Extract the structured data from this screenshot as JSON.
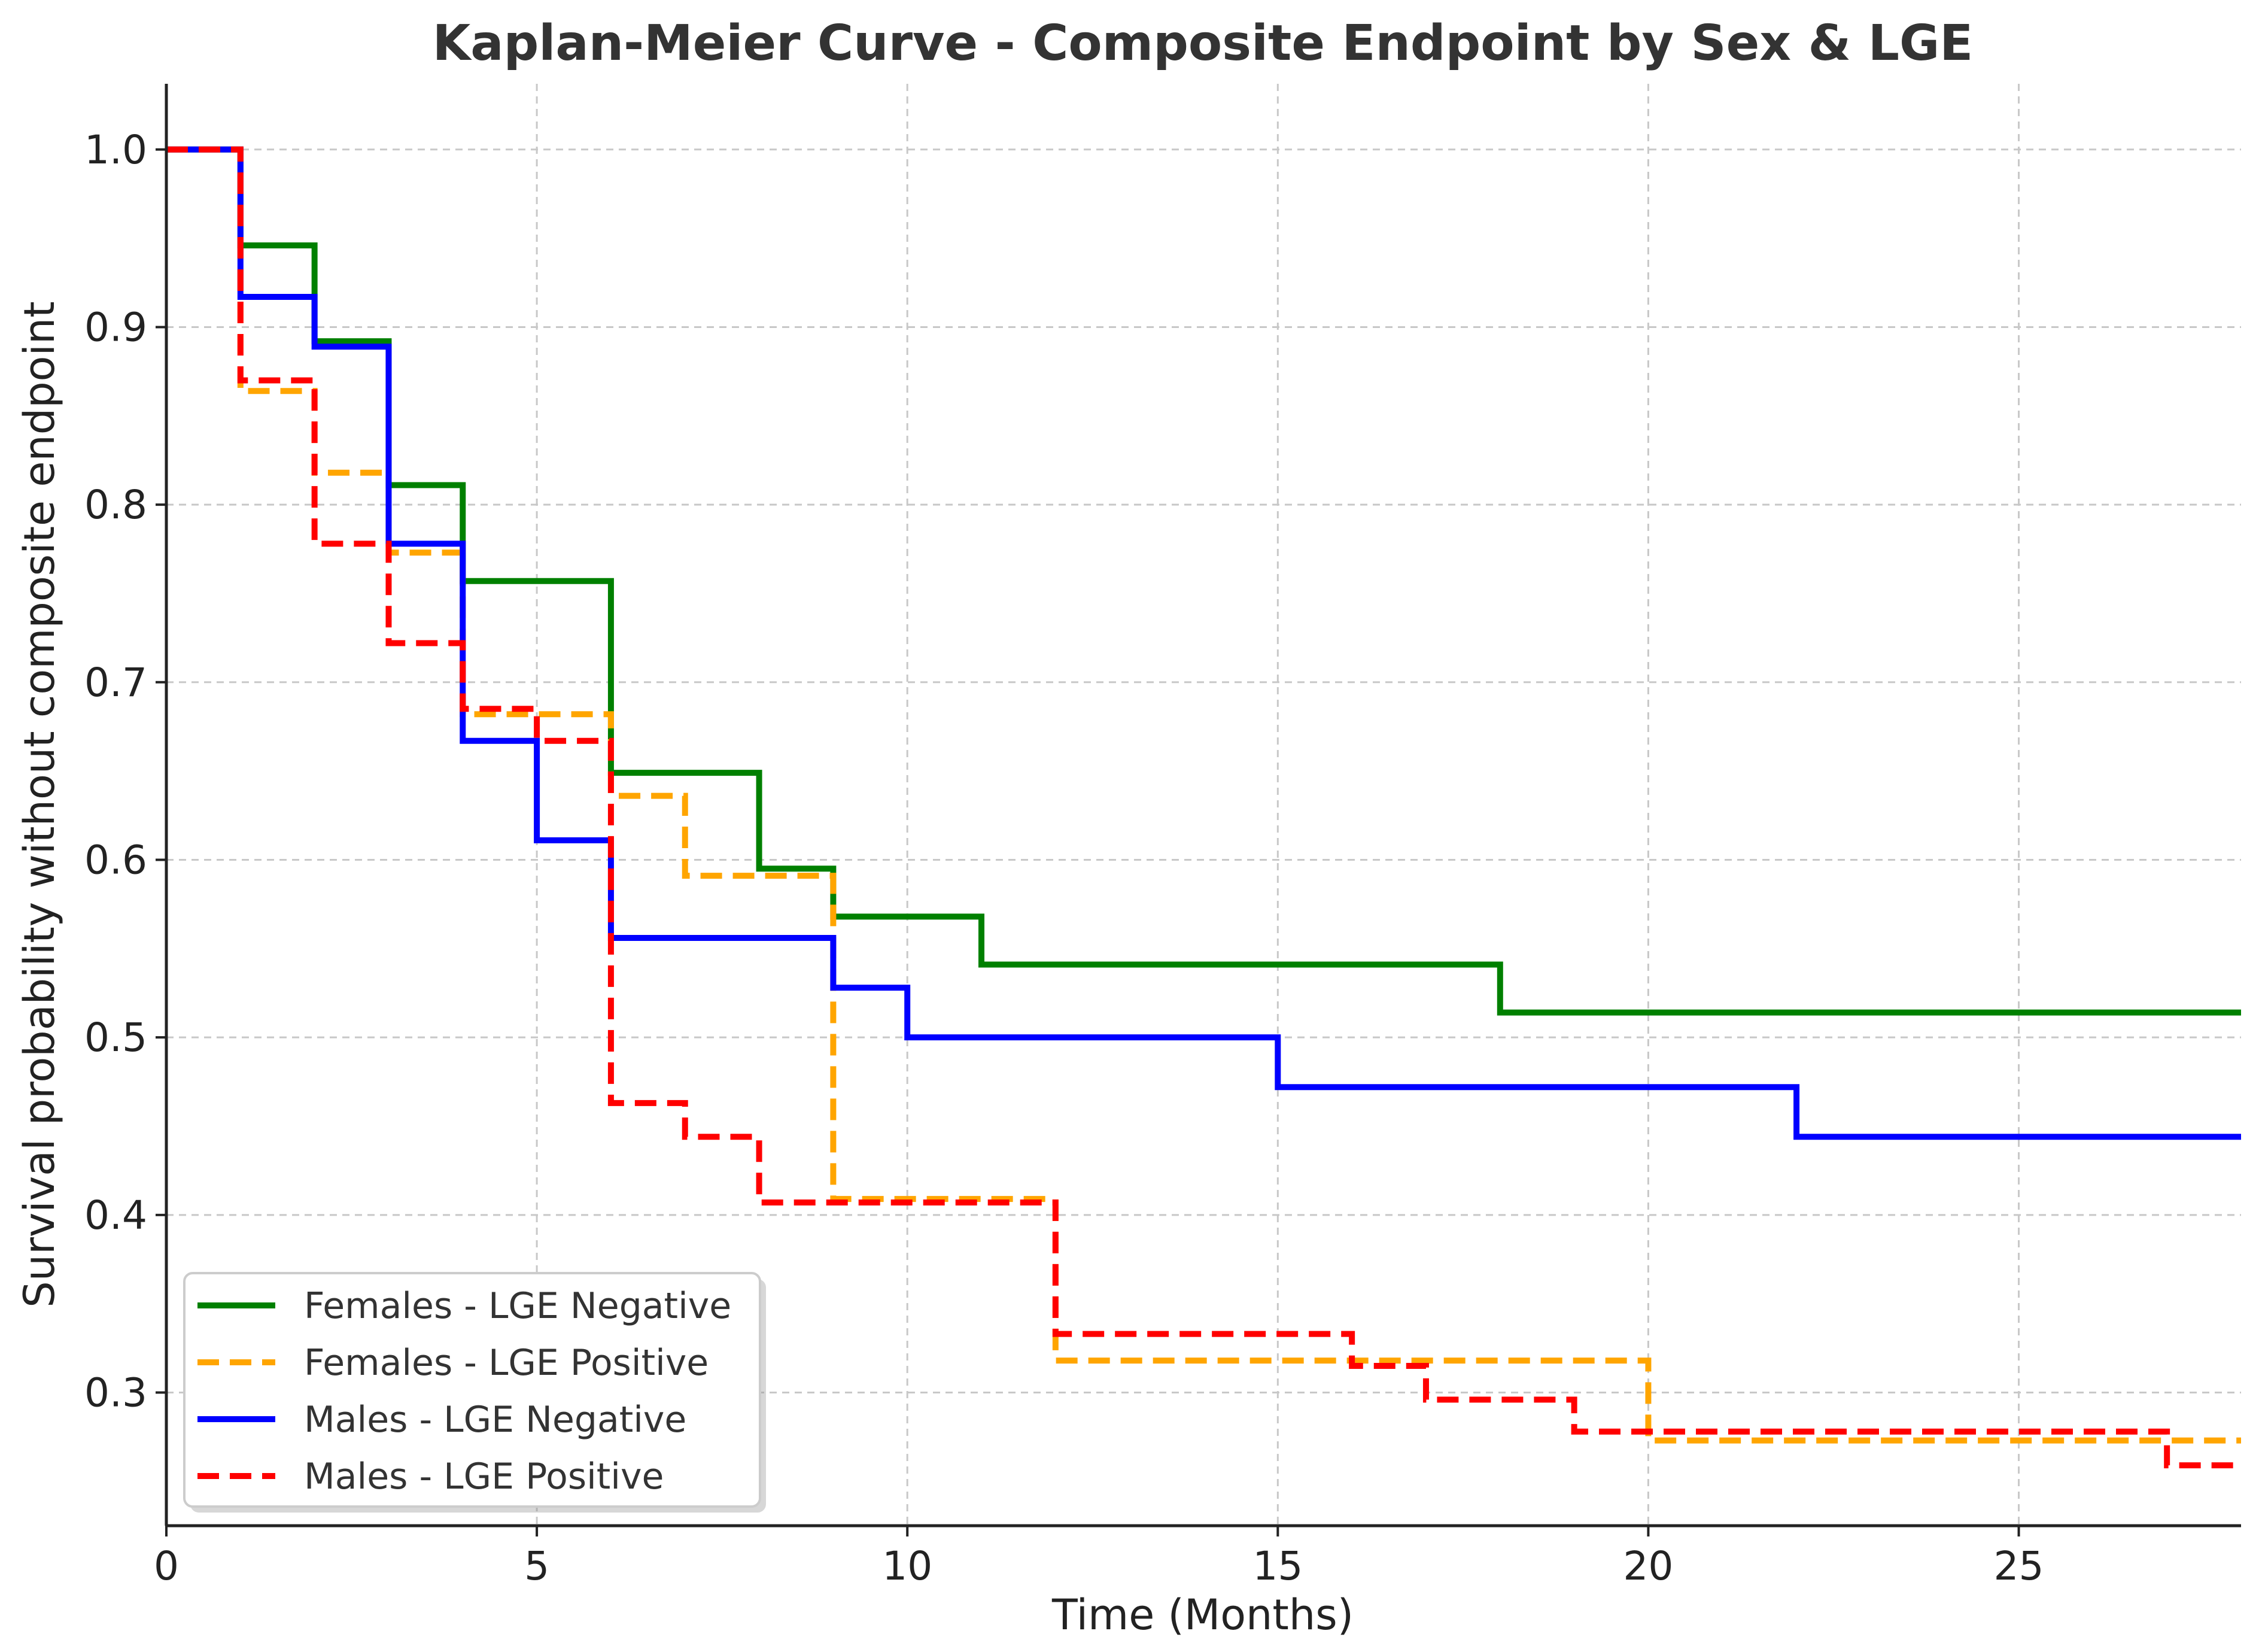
{
  "chart_data": {
    "type": "line",
    "step": true,
    "title": "Kaplan-Meier Curve - Composite Endpoint by Sex & LGE",
    "xlabel": "Time (Months)",
    "ylabel": "Survival probability without composite endpoint",
    "xlim": [
      0,
      28
    ],
    "ylim": [
      0.225,
      1.037
    ],
    "xticks": [
      0,
      5,
      10,
      15,
      20,
      25
    ],
    "xtick_labels": [
      "0",
      "5",
      "10",
      "15",
      "20",
      "25"
    ],
    "yticks": [
      0.3,
      0.4,
      0.5,
      0.6,
      0.7,
      0.8,
      0.9,
      1.0
    ],
    "ytick_labels": [
      "0.3",
      "0.4",
      "0.5",
      "0.6",
      "0.7",
      "0.8",
      "0.9",
      "1.0"
    ],
    "grid": true,
    "legend_position": "bottom-left",
    "series": [
      {
        "name": "Females - LGE Negative",
        "color": "#008000",
        "dashed": false,
        "x": [
          0,
          1,
          2,
          3,
          4,
          6,
          8,
          9,
          11,
          18,
          28
        ],
        "y": [
          1.0,
          0.946,
          0.892,
          0.811,
          0.757,
          0.649,
          0.595,
          0.568,
          0.541,
          0.514,
          0.514
        ]
      },
      {
        "name": "Females - LGE Positive",
        "color": "#ffa500",
        "dashed": true,
        "x": [
          0,
          1,
          2,
          3,
          4,
          6,
          7,
          9,
          12,
          20,
          28
        ],
        "y": [
          1.0,
          0.864,
          0.818,
          0.773,
          0.682,
          0.636,
          0.591,
          0.409,
          0.318,
          0.273,
          0.273
        ]
      },
      {
        "name": "Males - LGE Negative",
        "color": "#0000ff",
        "dashed": false,
        "x": [
          0,
          1,
          2,
          3,
          4,
          5,
          6,
          9,
          10,
          15,
          22,
          28
        ],
        "y": [
          1.0,
          0.917,
          0.889,
          0.778,
          0.667,
          0.611,
          0.556,
          0.528,
          0.5,
          0.472,
          0.444,
          0.444
        ]
      },
      {
        "name": "Males - LGE Positive",
        "color": "#ff0000",
        "dashed": true,
        "x": [
          0,
          1,
          2,
          3,
          4,
          5,
          6,
          7,
          8,
          12,
          16,
          17,
          19,
          27,
          28
        ],
        "y": [
          1.0,
          0.87,
          0.778,
          0.722,
          0.685,
          0.667,
          0.463,
          0.444,
          0.407,
          0.333,
          0.315,
          0.296,
          0.278,
          0.259,
          0.259
        ]
      }
    ]
  }
}
